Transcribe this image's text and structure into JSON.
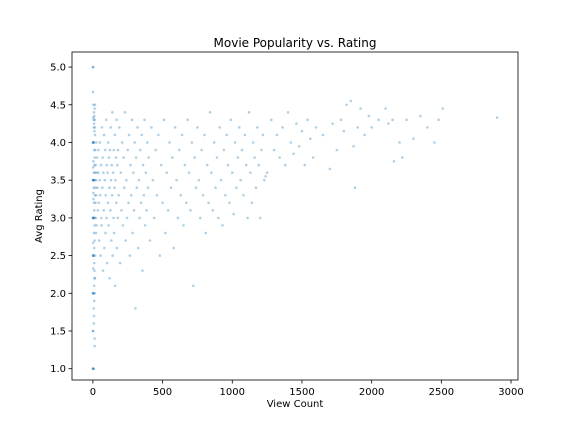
{
  "chart_data": {
    "type": "scatter",
    "title": "Movie Popularity vs. Rating",
    "xlabel": "View Count",
    "ylabel": "Avg Rating",
    "xlim": [
      -150,
      3050
    ],
    "ylim": [
      0.85,
      5.2
    ],
    "xticks": [
      0,
      500,
      1000,
      1500,
      2000,
      2500,
      3000
    ],
    "yticks": [
      1.0,
      1.5,
      2.0,
      2.5,
      3.0,
      3.5,
      4.0,
      4.5,
      5.0
    ],
    "ytick_labels": [
      "1.0",
      "1.5",
      "2.0",
      "2.5",
      "3.0",
      "3.5",
      "4.0",
      "4.5",
      "5.0"
    ],
    "grid": false,
    "point_color": "#1f77b4",
    "point_alpha": 0.35,
    "points": [
      [
        1,
        5.0
      ],
      [
        2,
        5.0
      ],
      [
        1,
        4.67
      ],
      [
        3,
        4.5
      ],
      [
        2,
        4.33
      ],
      [
        1,
        4.0
      ],
      [
        2,
        4.0
      ],
      [
        3,
        4.0
      ],
      [
        4,
        4.0
      ],
      [
        5,
        4.0
      ],
      [
        1,
        3.5
      ],
      [
        2,
        3.5
      ],
      [
        3,
        3.5
      ],
      [
        4,
        3.5
      ],
      [
        6,
        3.5
      ],
      [
        1,
        3.0
      ],
      [
        2,
        3.0
      ],
      [
        3,
        3.0
      ],
      [
        4,
        3.0
      ],
      [
        5,
        3.0
      ],
      [
        1,
        2.5
      ],
      [
        2,
        2.5
      ],
      [
        3,
        2.5
      ],
      [
        4,
        2.5
      ],
      [
        1,
        2.0
      ],
      [
        2,
        2.0
      ],
      [
        3,
        2.0
      ],
      [
        4,
        2.0
      ],
      [
        1,
        1.5
      ],
      [
        2,
        1.5
      ],
      [
        1,
        1.0
      ],
      [
        2,
        1.0
      ],
      [
        3,
        1.0
      ],
      [
        5,
        1.0
      ],
      [
        2,
        3.67
      ],
      [
        3,
        3.33
      ],
      [
        4,
        3.25
      ],
      [
        2,
        2.67
      ],
      [
        3,
        2.33
      ],
      [
        4,
        3.75
      ],
      [
        6,
        3.4
      ],
      [
        7,
        3.6
      ],
      [
        8,
        3.2
      ],
      [
        9,
        3.9
      ],
      [
        10,
        3.1
      ],
      [
        11,
        3.7
      ],
      [
        12,
        2.9
      ],
      [
        13,
        3.8
      ],
      [
        14,
        3.3
      ],
      [
        15,
        4.1
      ],
      [
        8,
        2.8
      ],
      [
        9,
        2.6
      ],
      [
        10,
        2.4
      ],
      [
        11,
        2.2
      ],
      [
        12,
        3.0
      ],
      [
        13,
        2.7
      ],
      [
        14,
        3.5
      ],
      [
        15,
        3.6
      ],
      [
        16,
        2.5
      ],
      [
        17,
        3.9
      ],
      [
        18,
        3.4
      ],
      [
        19,
        3.2
      ],
      [
        20,
        3.7
      ],
      [
        21,
        3.0
      ],
      [
        22,
        2.8
      ],
      [
        23,
        3.5
      ],
      [
        24,
        4.0
      ],
      [
        25,
        3.3
      ],
      [
        26,
        2.9
      ],
      [
        27,
        3.6
      ],
      [
        6,
        1.8
      ],
      [
        7,
        1.6
      ],
      [
        8,
        1.7
      ],
      [
        9,
        2.1
      ],
      [
        10,
        1.9
      ],
      [
        11,
        2.3
      ],
      [
        12,
        1.4
      ],
      [
        13,
        1.3
      ],
      [
        14,
        2.0
      ],
      [
        15,
        2.2
      ],
      [
        6,
        4.3
      ],
      [
        7,
        4.2
      ],
      [
        8,
        4.4
      ],
      [
        9,
        4.25
      ],
      [
        10,
        4.35
      ],
      [
        11,
        4.15
      ],
      [
        12,
        4.45
      ],
      [
        13,
        4.3
      ],
      [
        14,
        4.2
      ],
      [
        15,
        4.5
      ],
      [
        30,
        3.8
      ],
      [
        32,
        3.4
      ],
      [
        35,
        3.1
      ],
      [
        38,
        3.6
      ],
      [
        40,
        3.9
      ],
      [
        42,
        3.2
      ],
      [
        45,
        2.7
      ],
      [
        48,
        3.5
      ],
      [
        50,
        4.0
      ],
      [
        52,
        3.3
      ],
      [
        55,
        2.5
      ],
      [
        58,
        3.7
      ],
      [
        60,
        3.0
      ],
      [
        62,
        2.9
      ],
      [
        65,
        4.2
      ],
      [
        68,
        3.4
      ],
      [
        70,
        3.8
      ],
      [
        72,
        2.3
      ],
      [
        75,
        3.6
      ],
      [
        78,
        3.1
      ],
      [
        80,
        4.1
      ],
      [
        82,
        2.6
      ],
      [
        85,
        3.5
      ],
      [
        88,
        3.9
      ],
      [
        90,
        2.8
      ],
      [
        92,
        3.3
      ],
      [
        95,
        4.3
      ],
      [
        98,
        3.0
      ],
      [
        100,
        3.7
      ],
      [
        102,
        2.4
      ],
      [
        105,
        3.6
      ],
      [
        108,
        3.2
      ],
      [
        110,
        4.0
      ],
      [
        112,
        2.9
      ],
      [
        115,
        3.8
      ],
      [
        118,
        3.4
      ],
      [
        120,
        2.2
      ],
      [
        122,
        3.9
      ],
      [
        125,
        3.1
      ],
      [
        128,
        4.2
      ],
      [
        130,
        3.5
      ],
      [
        132,
        2.7
      ],
      [
        135,
        3.7
      ],
      [
        138,
        3.3
      ],
      [
        140,
        4.4
      ],
      [
        142,
        2.5
      ],
      [
        145,
        3.6
      ],
      [
        148,
        3.0
      ],
      [
        150,
        3.9
      ],
      [
        152,
        2.8
      ],
      [
        155,
        3.4
      ],
      [
        158,
        4.1
      ],
      [
        160,
        2.1
      ],
      [
        162,
        3.5
      ],
      [
        165,
        3.8
      ],
      [
        168,
        3.2
      ],
      [
        170,
        4.3
      ],
      [
        172,
        2.6
      ],
      [
        175,
        3.7
      ],
      [
        178,
        3.0
      ],
      [
        180,
        3.9
      ],
      [
        185,
        3.3
      ],
      [
        190,
        4.2
      ],
      [
        195,
        2.4
      ],
      [
        200,
        3.6
      ],
      [
        205,
        3.1
      ],
      [
        210,
        4.0
      ],
      [
        215,
        2.9
      ],
      [
        220,
        3.8
      ],
      [
        225,
        3.4
      ],
      [
        230,
        4.4
      ],
      [
        235,
        2.7
      ],
      [
        240,
        3.5
      ],
      [
        245,
        3.0
      ],
      [
        250,
        3.9
      ],
      [
        255,
        3.2
      ],
      [
        260,
        4.1
      ],
      [
        265,
        2.5
      ],
      [
        270,
        3.7
      ],
      [
        275,
        3.3
      ],
      [
        280,
        4.3
      ],
      [
        285,
        2.8
      ],
      [
        290,
        3.6
      ],
      [
        295,
        3.1
      ],
      [
        300,
        4.0
      ],
      [
        305,
        1.8
      ],
      [
        310,
        3.8
      ],
      [
        315,
        3.4
      ],
      [
        320,
        4.2
      ],
      [
        325,
        2.6
      ],
      [
        330,
        3.5
      ],
      [
        335,
        3.0
      ],
      [
        340,
        3.9
      ],
      [
        345,
        3.2
      ],
      [
        350,
        4.1
      ],
      [
        355,
        2.3
      ],
      [
        360,
        3.7
      ],
      [
        365,
        3.3
      ],
      [
        370,
        4.3
      ],
      [
        375,
        2.9
      ],
      [
        380,
        3.6
      ],
      [
        385,
        3.1
      ],
      [
        390,
        4.0
      ],
      [
        395,
        3.4
      ],
      [
        400,
        3.8
      ],
      [
        410,
        2.7
      ],
      [
        420,
        4.2
      ],
      [
        430,
        3.5
      ],
      [
        440,
        3.0
      ],
      [
        450,
        3.9
      ],
      [
        460,
        3.3
      ],
      [
        470,
        4.1
      ],
      [
        480,
        2.5
      ],
      [
        490,
        3.7
      ],
      [
        500,
        3.2
      ],
      [
        510,
        4.3
      ],
      [
        520,
        2.8
      ],
      [
        530,
        3.6
      ],
      [
        540,
        3.1
      ],
      [
        550,
        4.0
      ],
      [
        560,
        3.4
      ],
      [
        570,
        3.8
      ],
      [
        580,
        2.6
      ],
      [
        590,
        4.2
      ],
      [
        600,
        3.5
      ],
      [
        610,
        3.0
      ],
      [
        620,
        3.9
      ],
      [
        630,
        3.3
      ],
      [
        640,
        4.1
      ],
      [
        650,
        2.9
      ],
      [
        660,
        3.7
      ],
      [
        670,
        3.2
      ],
      [
        680,
        4.3
      ],
      [
        690,
        3.6
      ],
      [
        700,
        3.1
      ],
      [
        710,
        4.0
      ],
      [
        720,
        2.1
      ],
      [
        730,
        3.8
      ],
      [
        740,
        3.4
      ],
      [
        750,
        4.2
      ],
      [
        760,
        3.5
      ],
      [
        770,
        3.0
      ],
      [
        780,
        3.9
      ],
      [
        790,
        3.3
      ],
      [
        800,
        4.1
      ],
      [
        810,
        2.8
      ],
      [
        820,
        3.7
      ],
      [
        830,
        3.2
      ],
      [
        840,
        4.4
      ],
      [
        850,
        3.6
      ],
      [
        860,
        3.1
      ],
      [
        870,
        4.0
      ],
      [
        880,
        3.4
      ],
      [
        890,
        3.8
      ],
      [
        900,
        3.0
      ],
      [
        910,
        4.2
      ],
      [
        920,
        3.5
      ],
      [
        930,
        2.9
      ],
      [
        940,
        3.9
      ],
      [
        950,
        3.3
      ],
      [
        960,
        4.1
      ],
      [
        970,
        3.7
      ],
      [
        980,
        3.2
      ],
      [
        990,
        4.3
      ],
      [
        1000,
        3.6
      ],
      [
        1010,
        3.05
      ],
      [
        1020,
        4.0
      ],
      [
        1030,
        3.4
      ],
      [
        1040,
        3.8
      ],
      [
        1050,
        4.2
      ],
      [
        1060,
        3.5
      ],
      [
        1070,
        3.9
      ],
      [
        1080,
        3.3
      ],
      [
        1090,
        4.1
      ],
      [
        1100,
        3.7
      ],
      [
        1110,
        3.0
      ],
      [
        1120,
        4.4
      ],
      [
        1130,
        3.6
      ],
      [
        1140,
        3.2
      ],
      [
        1150,
        4.0
      ],
      [
        1160,
        3.8
      ],
      [
        1170,
        3.4
      ],
      [
        1180,
        4.2
      ],
      [
        1190,
        3.7
      ],
      [
        1200,
        3.0
      ],
      [
        1210,
        3.9
      ],
      [
        1220,
        4.1
      ],
      [
        1230,
        3.5
      ],
      [
        1240,
        3.55
      ],
      [
        1250,
        3.6
      ],
      [
        1280,
        4.3
      ],
      [
        1300,
        3.9
      ],
      [
        1320,
        4.1
      ],
      [
        1340,
        3.8
      ],
      [
        1360,
        4.2
      ],
      [
        1380,
        3.7
      ],
      [
        1400,
        4.4
      ],
      [
        1420,
        4.0
      ],
      [
        1440,
        3.85
      ],
      [
        1460,
        4.25
      ],
      [
        1480,
        3.95
      ],
      [
        1500,
        4.15
      ],
      [
        1520,
        3.7
      ],
      [
        1540,
        4.3
      ],
      [
        1560,
        4.05
      ],
      [
        1580,
        3.8
      ],
      [
        1600,
        4.2
      ],
      [
        1650,
        4.1
      ],
      [
        1700,
        3.65
      ],
      [
        1720,
        4.25
      ],
      [
        1750,
        3.9
      ],
      [
        1780,
        4.3
      ],
      [
        1800,
        4.15
      ],
      [
        1820,
        4.5
      ],
      [
        1850,
        4.55
      ],
      [
        1870,
        3.95
      ],
      [
        1880,
        3.4
      ],
      [
        1900,
        4.2
      ],
      [
        1920,
        4.45
      ],
      [
        1950,
        4.1
      ],
      [
        1980,
        4.35
      ],
      [
        2000,
        4.2
      ],
      [
        2050,
        4.3
      ],
      [
        2100,
        4.45
      ],
      [
        2120,
        4.25
      ],
      [
        2150,
        4.3
      ],
      [
        2160,
        3.75
      ],
      [
        2200,
        4.0
      ],
      [
        2220,
        3.8
      ],
      [
        2250,
        4.3
      ],
      [
        2300,
        4.05
      ],
      [
        2350,
        4.35
      ],
      [
        2400,
        4.2
      ],
      [
        2450,
        4.0
      ],
      [
        2480,
        4.3
      ],
      [
        2510,
        4.45
      ],
      [
        2900,
        4.33
      ]
    ]
  }
}
